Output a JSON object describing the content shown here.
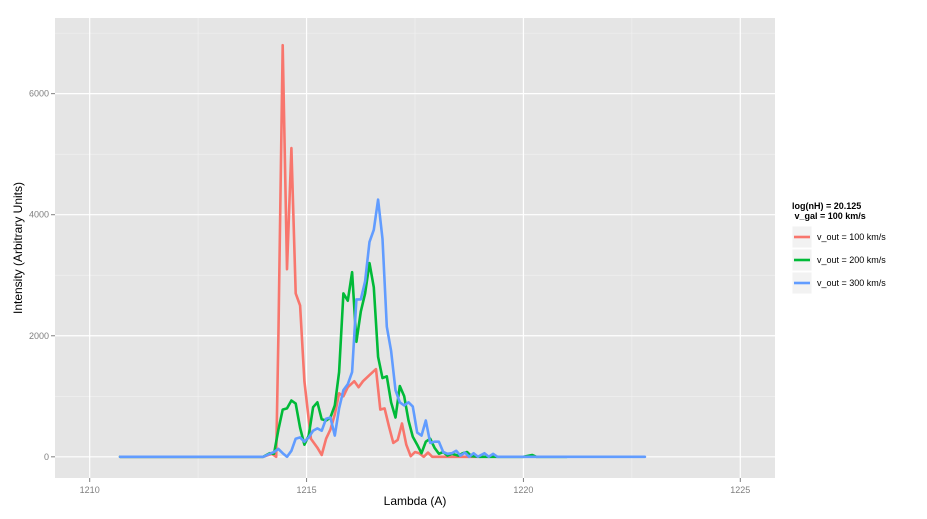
{
  "chart_data": {
    "type": "line",
    "title": "",
    "xlabel": "Lambda (A)",
    "ylabel": "Intensity (Arbitrary Units)",
    "xlim": [
      1209.2,
      1225.8
    ],
    "ylim": [
      -350,
      7250
    ],
    "x_ticks": [
      1210,
      1215,
      1220,
      1225
    ],
    "x_tick_labels": [
      "1210",
      "1215",
      "1220",
      "1225"
    ],
    "y_ticks": [
      0,
      2000,
      4000,
      6000
    ],
    "y_tick_labels": [
      "0",
      "2000",
      "4000",
      "6000"
    ],
    "grid": true,
    "background": "#e5e5e5",
    "legend": {
      "position": "right",
      "title_lines": [
        "log(nH) = 20.125",
        " v_gal = 100 km/s"
      ]
    },
    "series": [
      {
        "name": "v_out = 100 km/s",
        "color": "#f8766d",
        "points": [
          [
            1210.7,
            0
          ],
          [
            1213.5,
            0
          ],
          [
            1214.0,
            0
          ],
          [
            1214.2,
            50
          ],
          [
            1214.3,
            0
          ],
          [
            1214.35,
            2000
          ],
          [
            1214.45,
            6800
          ],
          [
            1214.55,
            3100
          ],
          [
            1214.65,
            5100
          ],
          [
            1214.75,
            2700
          ],
          [
            1214.85,
            2500
          ],
          [
            1214.95,
            1250
          ],
          [
            1215.1,
            300
          ],
          [
            1215.25,
            150
          ],
          [
            1215.35,
            30
          ],
          [
            1215.45,
            300
          ],
          [
            1215.55,
            450
          ],
          [
            1215.65,
            700
          ],
          [
            1215.75,
            1050
          ],
          [
            1215.85,
            1000
          ],
          [
            1215.95,
            1150
          ],
          [
            1216.1,
            1250
          ],
          [
            1216.2,
            1150
          ],
          [
            1216.3,
            1250
          ],
          [
            1216.45,
            1350
          ],
          [
            1216.6,
            1450
          ],
          [
            1216.7,
            780
          ],
          [
            1216.8,
            800
          ],
          [
            1216.9,
            500
          ],
          [
            1217.0,
            230
          ],
          [
            1217.1,
            280
          ],
          [
            1217.2,
            550
          ],
          [
            1217.3,
            200
          ],
          [
            1217.4,
            10
          ],
          [
            1217.5,
            80
          ],
          [
            1217.6,
            60
          ],
          [
            1217.7,
            0
          ],
          [
            1217.8,
            70
          ],
          [
            1217.9,
            0
          ],
          [
            1218.2,
            0
          ],
          [
            1218.6,
            0
          ],
          [
            1219.0,
            0
          ]
        ]
      },
      {
        "name": "v_out = 200 km/s",
        "color": "#00ba38",
        "points": [
          [
            1210.7,
            0
          ],
          [
            1213.5,
            0
          ],
          [
            1214.0,
            0
          ],
          [
            1214.15,
            60
          ],
          [
            1214.25,
            50
          ],
          [
            1214.35,
            450
          ],
          [
            1214.45,
            780
          ],
          [
            1214.55,
            800
          ],
          [
            1214.65,
            930
          ],
          [
            1214.75,
            880
          ],
          [
            1214.85,
            480
          ],
          [
            1214.95,
            200
          ],
          [
            1215.05,
            350
          ],
          [
            1215.15,
            820
          ],
          [
            1215.25,
            900
          ],
          [
            1215.35,
            620
          ],
          [
            1215.45,
            600
          ],
          [
            1215.55,
            650
          ],
          [
            1215.65,
            850
          ],
          [
            1215.75,
            1400
          ],
          [
            1215.85,
            2700
          ],
          [
            1215.95,
            2580
          ],
          [
            1216.05,
            3050
          ],
          [
            1216.15,
            1900
          ],
          [
            1216.25,
            2400
          ],
          [
            1216.35,
            2700
          ],
          [
            1216.45,
            3200
          ],
          [
            1216.55,
            2800
          ],
          [
            1216.65,
            1650
          ],
          [
            1216.75,
            1300
          ],
          [
            1216.85,
            1330
          ],
          [
            1216.95,
            900
          ],
          [
            1217.05,
            650
          ],
          [
            1217.15,
            1170
          ],
          [
            1217.25,
            1000
          ],
          [
            1217.35,
            600
          ],
          [
            1217.45,
            330
          ],
          [
            1217.55,
            200
          ],
          [
            1217.65,
            60
          ],
          [
            1217.75,
            250
          ],
          [
            1217.85,
            300
          ],
          [
            1217.95,
            150
          ],
          [
            1218.05,
            50
          ],
          [
            1218.15,
            80
          ],
          [
            1218.25,
            20
          ],
          [
            1218.35,
            50
          ],
          [
            1218.5,
            20
          ],
          [
            1218.6,
            60
          ],
          [
            1218.7,
            80
          ],
          [
            1218.8,
            10
          ],
          [
            1219.0,
            0
          ],
          [
            1219.5,
            0
          ],
          [
            1220.0,
            0
          ],
          [
            1220.2,
            30
          ],
          [
            1220.3,
            0
          ],
          [
            1221.0,
            0
          ]
        ]
      },
      {
        "name": "v_out = 300 km/s",
        "color": "#619cff",
        "points": [
          [
            1210.7,
            0
          ],
          [
            1213.5,
            0
          ],
          [
            1214.0,
            0
          ],
          [
            1214.15,
            50
          ],
          [
            1214.25,
            80
          ],
          [
            1214.35,
            130
          ],
          [
            1214.45,
            60
          ],
          [
            1214.55,
            0
          ],
          [
            1214.65,
            100
          ],
          [
            1214.75,
            300
          ],
          [
            1214.85,
            320
          ],
          [
            1214.95,
            250
          ],
          [
            1215.05,
            320
          ],
          [
            1215.15,
            430
          ],
          [
            1215.25,
            470
          ],
          [
            1215.35,
            430
          ],
          [
            1215.45,
            630
          ],
          [
            1215.55,
            650
          ],
          [
            1215.65,
            350
          ],
          [
            1215.75,
            800
          ],
          [
            1215.85,
            1100
          ],
          [
            1215.95,
            1200
          ],
          [
            1216.05,
            1400
          ],
          [
            1216.15,
            2600
          ],
          [
            1216.25,
            2600
          ],
          [
            1216.35,
            2900
          ],
          [
            1216.45,
            3550
          ],
          [
            1216.55,
            3750
          ],
          [
            1216.65,
            4250
          ],
          [
            1216.75,
            3600
          ],
          [
            1216.85,
            2150
          ],
          [
            1216.95,
            1750
          ],
          [
            1217.05,
            1100
          ],
          [
            1217.15,
            900
          ],
          [
            1217.25,
            850
          ],
          [
            1217.35,
            900
          ],
          [
            1217.45,
            830
          ],
          [
            1217.55,
            400
          ],
          [
            1217.65,
            350
          ],
          [
            1217.75,
            600
          ],
          [
            1217.85,
            230
          ],
          [
            1217.95,
            250
          ],
          [
            1218.05,
            250
          ],
          [
            1218.15,
            80
          ],
          [
            1218.25,
            50
          ],
          [
            1218.35,
            60
          ],
          [
            1218.45,
            100
          ],
          [
            1218.55,
            20
          ],
          [
            1218.65,
            70
          ],
          [
            1218.75,
            0
          ],
          [
            1218.85,
            60
          ],
          [
            1218.95,
            0
          ],
          [
            1219.1,
            60
          ],
          [
            1219.2,
            0
          ],
          [
            1219.3,
            50
          ],
          [
            1219.4,
            0
          ],
          [
            1220.0,
            0
          ],
          [
            1220.5,
            0
          ],
          [
            1221.0,
            0
          ],
          [
            1221.5,
            0
          ],
          [
            1222.0,
            0
          ],
          [
            1222.5,
            0
          ],
          [
            1222.8,
            0
          ]
        ]
      }
    ]
  }
}
